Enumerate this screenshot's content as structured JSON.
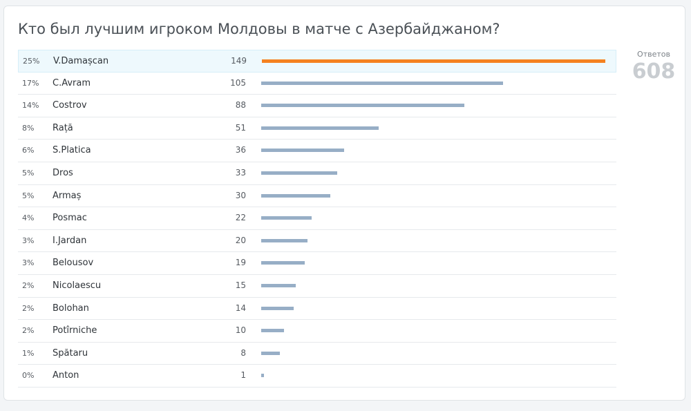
{
  "poll": {
    "title": "Кто был лучшим игроком Молдовы в матче с Азербайджаном?",
    "total_label": "Ответов",
    "total_value": "608"
  },
  "colors": {
    "top_bar": "#f58220",
    "bar": "#97aec6"
  },
  "chart_data": {
    "type": "bar",
    "orientation": "horizontal",
    "title": "Кто был лучшим игроком Молдовы в матче с Азербайджаном?",
    "categories": [
      "V.Damașcan",
      "C.Avram",
      "Costrov",
      "Rață",
      "S.Platica",
      "Dros",
      "Armaș",
      "Posmac",
      "I.Jardan",
      "Belousov",
      "Nicolaescu",
      "Bolohan",
      "Potîrniche",
      "Spătaru",
      "Anton"
    ],
    "values": [
      149,
      105,
      88,
      51,
      36,
      33,
      30,
      22,
      20,
      19,
      15,
      14,
      10,
      8,
      1
    ],
    "percent_labels": [
      "25%",
      "17%",
      "14%",
      "8%",
      "6%",
      "5%",
      "5%",
      "4%",
      "3%",
      "3%",
      "2%",
      "2%",
      "2%",
      "1%",
      "0%"
    ],
    "total": 608
  }
}
